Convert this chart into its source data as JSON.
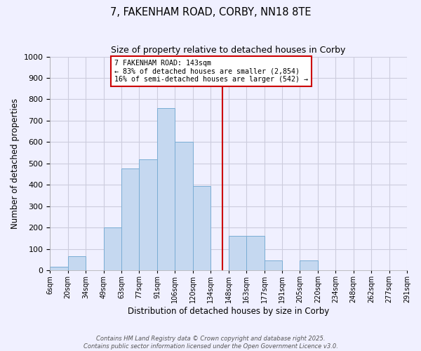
{
  "title": "7, FAKENHAM ROAD, CORBY, NN18 8TE",
  "subtitle": "Size of property relative to detached houses in Corby",
  "xlabel": "Distribution of detached houses by size in Corby",
  "ylabel": "Number of detached properties",
  "bin_labels": [
    "6sqm",
    "20sqm",
    "34sqm",
    "49sqm",
    "63sqm",
    "77sqm",
    "91sqm",
    "106sqm",
    "120sqm",
    "134sqm",
    "148sqm",
    "163sqm",
    "177sqm",
    "191sqm",
    "205sqm",
    "220sqm",
    "234sqm",
    "248sqm",
    "262sqm",
    "277sqm",
    "291sqm"
  ],
  "bin_edges": [
    6,
    20,
    34,
    49,
    63,
    77,
    91,
    106,
    120,
    134,
    148,
    163,
    177,
    191,
    205,
    220,
    234,
    248,
    262,
    277,
    291
  ],
  "bar_heights": [
    15,
    65,
    0,
    200,
    475,
    520,
    760,
    600,
    395,
    0,
    160,
    160,
    45,
    0,
    45,
    0,
    0,
    0,
    0,
    0
  ],
  "bar_color": "#c5d8f0",
  "bar_edge_color": "#7aadd4",
  "vline_x": 143,
  "vline_color": "#cc0000",
  "annotation_title": "7 FAKENHAM ROAD: 143sqm",
  "annotation_line1": "← 83% of detached houses are smaller (2,854)",
  "annotation_line2": "16% of semi-detached houses are larger (542) →",
  "annotation_box_color": "#ffffff",
  "annotation_box_edge_color": "#cc0000",
  "ylim": [
    0,
    1000
  ],
  "yticks": [
    0,
    100,
    200,
    300,
    400,
    500,
    600,
    700,
    800,
    900,
    1000
  ],
  "footer_line1": "Contains HM Land Registry data © Crown copyright and database right 2025.",
  "footer_line2": "Contains public sector information licensed under the Open Government Licence v3.0.",
  "background_color": "#f0f0ff",
  "grid_color": "#ccccdd",
  "figsize": [
    6.0,
    5.0
  ],
  "dpi": 100
}
